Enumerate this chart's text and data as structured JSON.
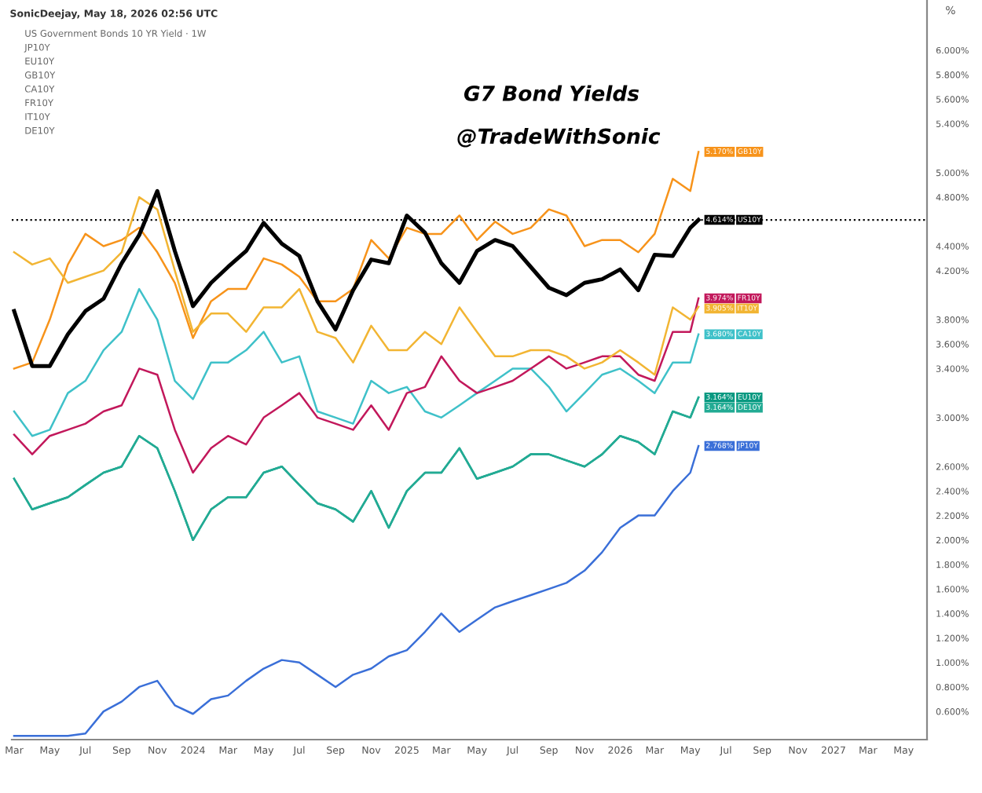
{
  "chart_data": {
    "type": "line",
    "title": "G7 Bond Yields",
    "subtitle": "@TradeWithSonic",
    "ylabel": "%",
    "annotations": [
      "SonicDeejay, May 18, 2026 02:56 UTC",
      "US Government Bonds 10 YR Yield · 1W",
      "JP10Y",
      "EU10Y",
      "GB10Y",
      "CA10Y",
      "FR10Y",
      "IT10Y",
      "DE10Y"
    ],
    "x": [
      "2023-03-01",
      "2023-04-01",
      "2023-05-01",
      "2023-06-01",
      "2023-07-01",
      "2023-08-01",
      "2023-09-01",
      "2023-10-01",
      "2023-11-01",
      "2023-12-01",
      "2024-01-01",
      "2024-02-01",
      "2024-03-01",
      "2024-04-01",
      "2024-05-01",
      "2024-06-01",
      "2024-07-01",
      "2024-08-01",
      "2024-09-01",
      "2024-10-01",
      "2024-11-01",
      "2024-12-01",
      "2025-01-01",
      "2025-02-01",
      "2025-03-01",
      "2025-04-01",
      "2025-05-01",
      "2025-06-01",
      "2025-07-01",
      "2025-08-01",
      "2025-09-01",
      "2025-10-01",
      "2025-11-01",
      "2025-12-01",
      "2026-01-01",
      "2026-02-01",
      "2026-03-01",
      "2026-04-01",
      "2026-05-01",
      "2026-05-15"
    ],
    "series": [
      {
        "name": "JP10Y",
        "color": "#3a6fd8",
        "values": [
          0.4,
          0.4,
          0.4,
          0.4,
          0.42,
          0.6,
          0.68,
          0.8,
          0.85,
          0.65,
          0.58,
          0.7,
          0.73,
          0.85,
          0.95,
          1.02,
          1.0,
          0.9,
          0.8,
          0.9,
          0.95,
          1.05,
          1.1,
          1.25,
          1.4,
          1.25,
          1.35,
          1.45,
          1.5,
          1.55,
          1.6,
          1.65,
          1.75,
          1.9,
          2.1,
          2.2,
          2.2,
          2.4,
          2.55,
          2.768
        ],
        "value_labels": [
          null,
          null,
          null,
          null,
          null,
          null,
          null,
          null,
          null,
          null,
          null,
          null,
          null,
          null,
          null,
          null,
          null,
          null,
          null,
          null,
          null,
          null,
          null,
          null,
          null,
          null,
          null,
          null,
          null,
          null,
          null,
          null,
          null,
          null,
          null,
          null,
          null,
          null,
          null,
          "2.768%"
        ]
      },
      {
        "name": "EU10Y",
        "color": "#089981",
        "values": [
          2.5,
          2.25,
          2.3,
          2.35,
          2.45,
          2.55,
          2.6,
          2.85,
          2.75,
          2.4,
          2.0,
          2.25,
          2.35,
          2.35,
          2.55,
          2.6,
          2.45,
          2.3,
          2.25,
          2.15,
          2.4,
          2.1,
          2.4,
          2.55,
          2.55,
          2.75,
          2.5,
          2.55,
          2.6,
          2.7,
          2.7,
          2.65,
          2.6,
          2.7,
          2.85,
          2.8,
          2.7,
          3.05,
          3.0,
          3.164
        ],
        "value_labels": [
          null,
          null,
          null,
          null,
          null,
          null,
          null,
          null,
          null,
          null,
          null,
          null,
          null,
          null,
          null,
          null,
          null,
          null,
          null,
          null,
          null,
          null,
          null,
          null,
          null,
          null,
          null,
          null,
          null,
          null,
          null,
          null,
          null,
          null,
          null,
          null,
          null,
          null,
          null,
          "3.164%"
        ]
      },
      {
        "name": "GB10Y",
        "color": "#f7931a",
        "values": [
          3.4,
          3.45,
          3.8,
          4.25,
          4.5,
          4.4,
          4.45,
          4.55,
          4.35,
          4.1,
          3.65,
          3.95,
          4.05,
          4.05,
          4.3,
          4.25,
          4.15,
          3.95,
          3.95,
          4.05,
          4.45,
          4.3,
          4.55,
          4.5,
          4.5,
          4.65,
          4.45,
          4.6,
          4.5,
          4.55,
          4.7,
          4.65,
          4.4,
          4.45,
          4.45,
          4.35,
          4.5,
          4.95,
          4.85,
          5.17
        ],
        "value_labels": [
          null,
          null,
          null,
          null,
          null,
          null,
          null,
          null,
          null,
          null,
          null,
          null,
          null,
          null,
          null,
          null,
          null,
          null,
          null,
          null,
          null,
          null,
          null,
          null,
          null,
          null,
          null,
          null,
          null,
          null,
          null,
          null,
          null,
          null,
          null,
          null,
          null,
          null,
          null,
          "5.170%"
        ]
      },
      {
        "name": "CA10Y",
        "color": "#3fc1c9",
        "values": [
          3.05,
          2.85,
          2.9,
          3.2,
          3.3,
          3.55,
          3.7,
          4.05,
          3.8,
          3.3,
          3.15,
          3.45,
          3.45,
          3.55,
          3.7,
          3.45,
          3.5,
          3.05,
          3.0,
          2.95,
          3.3,
          3.2,
          3.25,
          3.05,
          3.0,
          3.1,
          3.2,
          3.3,
          3.4,
          3.4,
          3.25,
          3.05,
          3.2,
          3.35,
          3.4,
          3.3,
          3.2,
          3.45,
          3.45,
          3.68
        ],
        "value_labels": [
          null,
          null,
          null,
          null,
          null,
          null,
          null,
          null,
          null,
          null,
          null,
          null,
          null,
          null,
          null,
          null,
          null,
          null,
          null,
          null,
          null,
          null,
          null,
          null,
          null,
          null,
          null,
          null,
          null,
          null,
          null,
          null,
          null,
          null,
          null,
          null,
          null,
          null,
          null,
          "3.680%"
        ]
      },
      {
        "name": "FR10Y",
        "color": "#c2185b",
        "values": [
          2.86,
          2.7,
          2.85,
          2.9,
          2.95,
          3.05,
          3.1,
          3.4,
          3.35,
          2.9,
          2.55,
          2.75,
          2.85,
          2.78,
          3.0,
          3.1,
          3.2,
          3.0,
          2.95,
          2.9,
          3.1,
          2.9,
          3.2,
          3.25,
          3.5,
          3.3,
          3.2,
          3.25,
          3.3,
          3.4,
          3.5,
          3.4,
          3.45,
          3.5,
          3.5,
          3.35,
          3.3,
          3.7,
          3.7,
          3.974
        ],
        "value_labels": [
          null,
          null,
          null,
          null,
          null,
          null,
          null,
          null,
          null,
          null,
          null,
          null,
          null,
          null,
          null,
          null,
          null,
          null,
          null,
          null,
          null,
          null,
          null,
          null,
          null,
          null,
          null,
          null,
          null,
          null,
          null,
          null,
          null,
          null,
          null,
          null,
          null,
          null,
          null,
          "3.974%"
        ]
      },
      {
        "name": "IT10Y",
        "color": "#f2b533",
        "values": [
          4.35,
          4.25,
          4.3,
          4.1,
          4.15,
          4.2,
          4.35,
          4.8,
          4.7,
          4.2,
          3.7,
          3.85,
          3.85,
          3.7,
          3.9,
          3.9,
          4.05,
          3.7,
          3.65,
          3.45,
          3.75,
          3.55,
          3.55,
          3.7,
          3.6,
          3.9,
          3.7,
          3.5,
          3.5,
          3.55,
          3.55,
          3.5,
          3.4,
          3.45,
          3.55,
          3.45,
          3.35,
          3.9,
          3.8,
          3.905
        ],
        "value_labels": [
          null,
          null,
          null,
          null,
          null,
          null,
          null,
          null,
          null,
          null,
          null,
          null,
          null,
          null,
          null,
          null,
          null,
          null,
          null,
          null,
          null,
          null,
          null,
          null,
          null,
          null,
          null,
          null,
          null,
          null,
          null,
          null,
          null,
          null,
          null,
          null,
          null,
          null,
          null,
          "3.905%"
        ]
      },
      {
        "name": "DE10Y",
        "color": "#22ab94",
        "values": [
          2.5,
          2.25,
          2.3,
          2.35,
          2.45,
          2.55,
          2.6,
          2.85,
          2.75,
          2.4,
          2.0,
          2.25,
          2.35,
          2.35,
          2.55,
          2.6,
          2.45,
          2.3,
          2.25,
          2.15,
          2.4,
          2.1,
          2.4,
          2.55,
          2.55,
          2.75,
          2.5,
          2.55,
          2.6,
          2.7,
          2.7,
          2.65,
          2.6,
          2.7,
          2.85,
          2.8,
          2.7,
          3.05,
          3.0,
          3.164
        ],
        "value_labels": [
          null,
          null,
          null,
          null,
          null,
          null,
          null,
          null,
          null,
          null,
          null,
          null,
          null,
          null,
          null,
          null,
          null,
          null,
          null,
          null,
          null,
          null,
          null,
          null,
          null,
          null,
          null,
          null,
          null,
          null,
          null,
          null,
          null,
          null,
          null,
          null,
          null,
          null,
          null,
          "3.164%"
        ]
      },
      {
        "name": "US10Y",
        "color": "#000000",
        "values": [
          3.87,
          3.42,
          3.42,
          3.68,
          3.87,
          3.97,
          4.26,
          4.49,
          4.85,
          4.36,
          3.91,
          4.1,
          4.23,
          4.36,
          4.59,
          4.42,
          4.32,
          3.95,
          3.72,
          4.04,
          4.29,
          4.26,
          4.65,
          4.51,
          4.26,
          4.1,
          4.36,
          4.45,
          4.4,
          4.23,
          4.06,
          4.0,
          4.1,
          4.13,
          4.21,
          4.04,
          4.33,
          4.32,
          4.55,
          4.614
        ],
        "value_labels": [
          null,
          null,
          null,
          null,
          null,
          null,
          null,
          null,
          null,
          null,
          null,
          null,
          null,
          null,
          null,
          null,
          null,
          null,
          null,
          null,
          null,
          null,
          null,
          null,
          null,
          null,
          null,
          null,
          null,
          null,
          null,
          null,
          null,
          null,
          null,
          null,
          null,
          null,
          null,
          "4.614%"
        ]
      }
    ],
    "ref_lines": [
      {
        "axis": "y",
        "value": 4.614,
        "color": "#000000",
        "line_style": "dotted"
      }
    ],
    "xlim": [
      "2023-02-25",
      "2027-06-10"
    ],
    "xticks": [
      {
        "value": "2023-03-01",
        "label": "Mar"
      },
      {
        "value": "2023-05-01",
        "label": "May"
      },
      {
        "value": "2023-07-01",
        "label": "Jul"
      },
      {
        "value": "2023-09-01",
        "label": "Sep"
      },
      {
        "value": "2023-11-01",
        "label": "Nov"
      },
      {
        "value": "2024-01-01",
        "label": "2024"
      },
      {
        "value": "2024-03-01",
        "label": "Mar"
      },
      {
        "value": "2024-05-01",
        "label": "May"
      },
      {
        "value": "2024-07-01",
        "label": "Jul"
      },
      {
        "value": "2024-09-01",
        "label": "Sep"
      },
      {
        "value": "2024-11-01",
        "label": "Nov"
      },
      {
        "value": "2025-01-01",
        "label": "2025"
      },
      {
        "value": "2025-03-01",
        "label": "Mar"
      },
      {
        "value": "2025-05-01",
        "label": "May"
      },
      {
        "value": "2025-07-01",
        "label": "Jul"
      },
      {
        "value": "2025-09-01",
        "label": "Sep"
      },
      {
        "value": "2025-11-01",
        "label": "Nov"
      },
      {
        "value": "2026-01-01",
        "label": "2026"
      },
      {
        "value": "2026-03-01",
        "label": "Mar"
      },
      {
        "value": "2026-05-01",
        "label": "May"
      },
      {
        "value": "2026-07-01",
        "label": "Jul"
      },
      {
        "value": "2026-09-01",
        "label": "Sep"
      },
      {
        "value": "2026-11-01",
        "label": "Nov"
      },
      {
        "value": "2027-01-01",
        "label": "2027"
      },
      {
        "value": "2027-03-01",
        "label": "Mar"
      },
      {
        "value": "2027-05-01",
        "label": "May"
      }
    ],
    "ylim": [
      0.37,
      6.41
    ],
    "yticks": [
      {
        "value": 6.0,
        "label": "6.000%"
      },
      {
        "value": 5.8,
        "label": "5.800%"
      },
      {
        "value": 5.6,
        "label": "5.600%"
      },
      {
        "value": 5.4,
        "label": "5.400%"
      },
      {
        "value": 5.0,
        "label": "5.000%"
      },
      {
        "value": 4.8,
        "label": "4.800%"
      },
      {
        "value": 4.4,
        "label": "4.400%"
      },
      {
        "value": 4.2,
        "label": "4.200%"
      },
      {
        "value": 3.8,
        "label": "3.800%"
      },
      {
        "value": 3.6,
        "label": "3.600%"
      },
      {
        "value": 3.4,
        "label": "3.400%"
      },
      {
        "value": 3.0,
        "label": "3.000%"
      },
      {
        "value": 2.6,
        "label": "2.600%"
      },
      {
        "value": 2.4,
        "label": "2.400%"
      },
      {
        "value": 2.2,
        "label": "2.200%"
      },
      {
        "value": 2.0,
        "label": "2.000%"
      },
      {
        "value": 1.8,
        "label": "1.800%"
      },
      {
        "value": 1.6,
        "label": "1.600%"
      },
      {
        "value": 1.4,
        "label": "1.400%"
      },
      {
        "value": 1.2,
        "label": "1.200%"
      },
      {
        "value": 1.0,
        "label": "1.000%"
      },
      {
        "value": 0.8,
        "label": "0.800%"
      },
      {
        "value": 0.6,
        "label": "0.600%"
      }
    ],
    "grid": false,
    "legend": "right",
    "line_style": "solid"
  }
}
